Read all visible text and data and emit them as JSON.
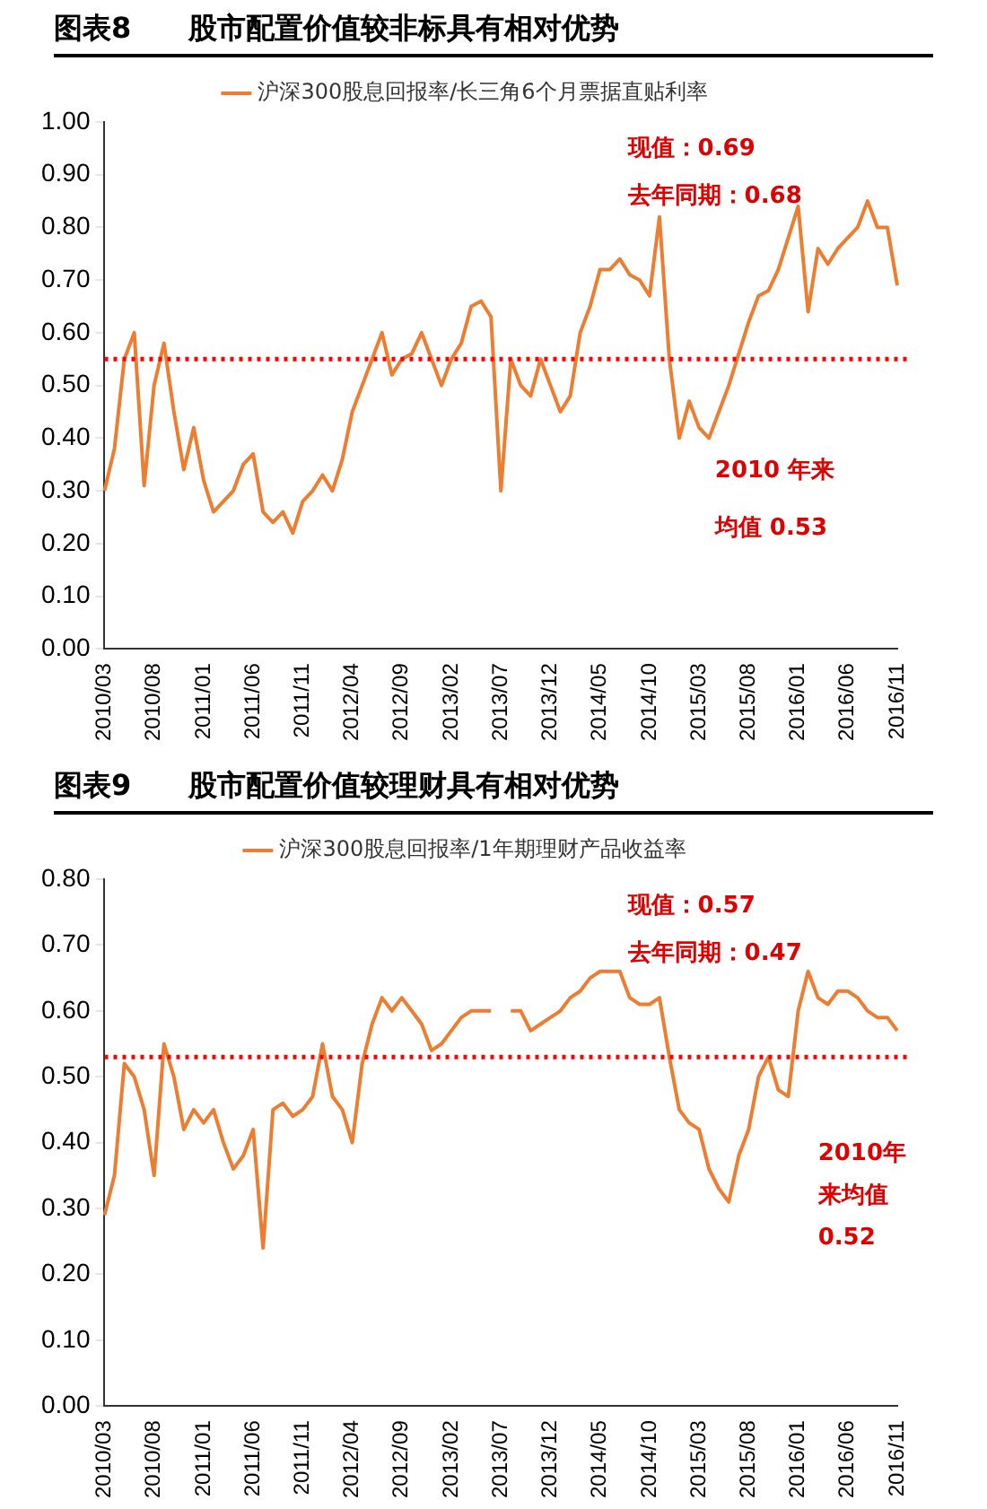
{
  "chart_data": [
    {
      "type": "line",
      "title": "图表8　　股市配置价值较非标具有相对优势",
      "categories": [
        "2010/03",
        null,
        null,
        null,
        null,
        "2010/08",
        null,
        null,
        null,
        null,
        "2011/01",
        null,
        null,
        null,
        null,
        "2011/06",
        null,
        null,
        null,
        null,
        "2011/11",
        null,
        null,
        null,
        null,
        "2012/04",
        null,
        null,
        null,
        null,
        "2012/09",
        null,
        null,
        null,
        null,
        "2013/02",
        null,
        null,
        null,
        null,
        "2013/07",
        null,
        null,
        null,
        null,
        "2013/12",
        null,
        null,
        null,
        null,
        "2014/05",
        null,
        null,
        null,
        null,
        "2014/10",
        null,
        null,
        null,
        null,
        "2015/03",
        null,
        null,
        null,
        null,
        "2015/08",
        null,
        null,
        null,
        null,
        "2016/01",
        null,
        null,
        null,
        null,
        "2016/06",
        null,
        null,
        null,
        null,
        "2016/11"
      ],
      "series": [
        {
          "name": "沪深300股息回报率/长三角6个月票据直贴利率",
          "color": "#ed7d31",
          "values": [
            0.3,
            0.38,
            0.55,
            0.6,
            0.31,
            0.5,
            0.58,
            0.45,
            0.34,
            0.42,
            0.32,
            0.26,
            0.28,
            0.3,
            0.35,
            0.37,
            0.26,
            0.24,
            0.26,
            0.22,
            0.28,
            0.3,
            0.33,
            0.3,
            0.36,
            0.45,
            0.5,
            0.55,
            0.6,
            0.52,
            0.55,
            0.56,
            0.6,
            0.55,
            0.5,
            0.55,
            0.58,
            0.65,
            0.66,
            0.63,
            0.3,
            0.55,
            0.5,
            0.48,
            0.55,
            0.5,
            0.45,
            0.48,
            0.6,
            0.65,
            0.72,
            0.72,
            0.74,
            0.71,
            0.7,
            0.67,
            0.82,
            0.55,
            0.4,
            0.47,
            0.42,
            0.4,
            0.45,
            0.5,
            0.56,
            0.62,
            0.67,
            0.68,
            0.72,
            0.78,
            0.84,
            0.64,
            0.76,
            0.73,
            0.76,
            0.78,
            0.8,
            0.85,
            0.8,
            0.8,
            0.69
          ]
        }
      ],
      "ylim": [
        0,
        1
      ],
      "yticks": [
        {
          "value": 0,
          "label": "0.00"
        },
        {
          "value": 0.1,
          "label": "0.10"
        },
        {
          "value": 0.2,
          "label": "0.20"
        },
        {
          "value": 0.3,
          "label": "0.30"
        },
        {
          "value": 0.4,
          "label": "0.40"
        },
        {
          "value": 0.5,
          "label": "0.50"
        },
        {
          "value": 0.6,
          "label": "0.60"
        },
        {
          "value": 0.7,
          "label": "0.70"
        },
        {
          "value": 0.8,
          "label": "0.80"
        },
        {
          "value": 0.9,
          "label": "0.90"
        },
        {
          "value": 1,
          "label": "1.00"
        }
      ],
      "ref_lines": [
        {
          "axis": "y",
          "value": 0.55,
          "color": "#ff0000",
          "line_style": "dotted"
        }
      ],
      "annotations": [
        "现值：0.69",
        "去年同期：0.68",
        "2010 年来",
        "均值 0.53"
      ],
      "legend": "top",
      "grid": false,
      "marker": "none",
      "line_style": "solid"
    },
    {
      "type": "line",
      "title": "图表9　　股市配置价值较理财具有相对优势",
      "categories": [
        "2010/03",
        null,
        null,
        null,
        null,
        "2010/08",
        null,
        null,
        null,
        null,
        "2011/01",
        null,
        null,
        null,
        null,
        "2011/06",
        null,
        null,
        null,
        null,
        "2011/11",
        null,
        null,
        null,
        null,
        "2012/04",
        null,
        null,
        null,
        null,
        "2012/09",
        null,
        null,
        null,
        null,
        "2013/02",
        null,
        null,
        null,
        null,
        "2013/07",
        null,
        null,
        null,
        null,
        "2013/12",
        null,
        null,
        null,
        null,
        "2014/05",
        null,
        null,
        null,
        null,
        "2014/10",
        null,
        null,
        null,
        null,
        "2015/03",
        null,
        null,
        null,
        null,
        "2015/08",
        null,
        null,
        null,
        null,
        "2016/01",
        null,
        null,
        null,
        null,
        "2016/06",
        null,
        null,
        null,
        null,
        "2016/11"
      ],
      "series": [
        {
          "name": "沪深300股息回报率/1年期理财产品收益率",
          "color": "#ed7d31",
          "values": [
            0.29,
            0.35,
            0.52,
            0.5,
            0.45,
            0.35,
            0.55,
            0.5,
            0.42,
            0.45,
            0.43,
            0.45,
            0.4,
            0.36,
            0.38,
            0.42,
            0.24,
            0.45,
            0.46,
            0.44,
            0.45,
            0.47,
            0.55,
            0.47,
            0.45,
            0.4,
            0.52,
            0.58,
            0.62,
            0.6,
            0.62,
            0.6,
            0.58,
            0.54,
            0.55,
            0.57,
            0.59,
            0.6,
            0.6,
            0.6,
            null,
            0.6,
            0.6,
            0.57,
            0.58,
            0.59,
            0.6,
            0.62,
            0.63,
            0.65,
            0.66,
            0.66,
            0.66,
            0.62,
            0.61,
            0.61,
            0.62,
            0.53,
            0.45,
            0.43,
            0.42,
            0.36,
            0.33,
            0.31,
            0.38,
            0.42,
            0.5,
            0.53,
            0.48,
            0.47,
            0.6,
            0.66,
            0.62,
            0.61,
            0.63,
            0.63,
            0.62,
            0.6,
            0.59,
            0.59,
            0.57
          ]
        }
      ],
      "ylim": [
        0,
        0.8
      ],
      "yticks": [
        {
          "value": 0,
          "label": "0.00"
        },
        {
          "value": 0.1,
          "label": "0.10"
        },
        {
          "value": 0.2,
          "label": "0.20"
        },
        {
          "value": 0.3,
          "label": "0.30"
        },
        {
          "value": 0.4,
          "label": "0.40"
        },
        {
          "value": 0.5,
          "label": "0.50"
        },
        {
          "value": 0.6,
          "label": "0.60"
        },
        {
          "value": 0.7,
          "label": "0.70"
        },
        {
          "value": 0.8,
          "label": "0.80"
        }
      ],
      "ref_lines": [
        {
          "axis": "y",
          "value": 0.53,
          "color": "#ff0000",
          "line_style": "dotted"
        }
      ],
      "annotations": [
        "现值：0.57",
        "去年同期：0.47",
        "2010年",
        "来均值",
        "0.52"
      ],
      "legend": "top",
      "grid": false,
      "marker": "none",
      "line_style": "solid"
    }
  ]
}
